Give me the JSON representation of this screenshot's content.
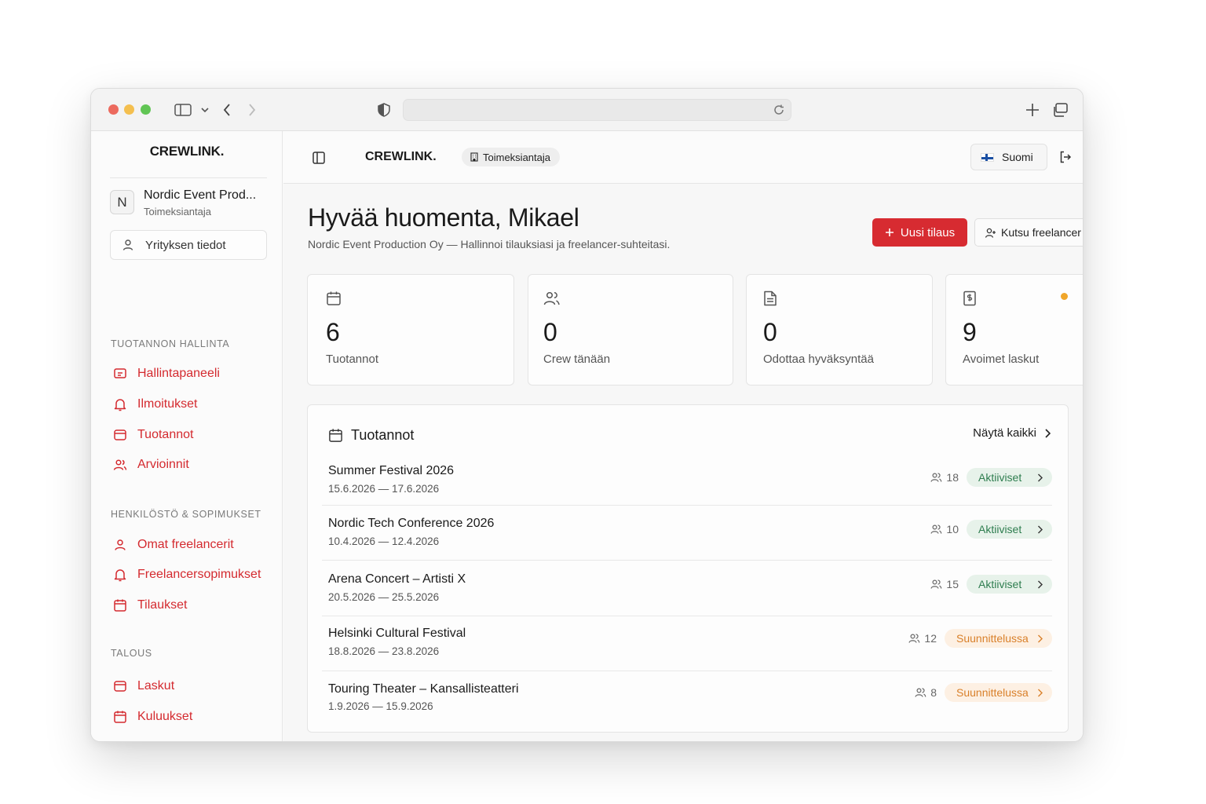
{
  "app": {
    "brand": "CREWLINK."
  },
  "organization": {
    "initial": "N",
    "name": "Nordic Event Prod...",
    "role": "Toimeksiantaja",
    "company_button": "Yrityksen tiedot"
  },
  "sidebar": {
    "sections": [
      {
        "title": "TUOTANNON HALLINTA",
        "items": [
          {
            "label": "Hallintapaneeli",
            "icon": "dashboard-icon"
          },
          {
            "label": "Ilmoitukset",
            "icon": "bell-icon"
          },
          {
            "label": "Tuotannot",
            "icon": "folder-icon"
          },
          {
            "label": "Arvioinnit",
            "icon": "users-icon"
          }
        ]
      },
      {
        "title": "HENKILÖSTÖ & SOPIMUKSET",
        "items": [
          {
            "label": "Omat freelancerit",
            "icon": "user-icon"
          },
          {
            "label": "Freelancersopimukset",
            "icon": "bell-icon"
          },
          {
            "label": "Tilaukset",
            "icon": "calendar-icon"
          }
        ]
      },
      {
        "title": "TALOUS",
        "items": [
          {
            "label": "Laskut",
            "icon": "folder-icon"
          },
          {
            "label": "Kuluukset",
            "icon": "calendar-icon"
          }
        ]
      }
    ]
  },
  "header": {
    "brand": "CREWLINK.",
    "role_badge": "Toimeksiantaja",
    "language": "Suomi"
  },
  "page": {
    "greeting": "Hyvää huomenta, Mikael",
    "subtitle": "Nordic Event Production Oy — Hallinnoi tilauksiasi ja freelancer-suhteitasi.",
    "new_order_button": "Uusi tilaus",
    "invite_button": "Kutsu freelancer"
  },
  "stats": [
    {
      "value": "6",
      "label": "Tuotannot",
      "icon": "calendar-icon"
    },
    {
      "value": "0",
      "label": "Crew tänään",
      "icon": "users-icon"
    },
    {
      "value": "0",
      "label": "Odottaa hyväksyntää",
      "icon": "document-icon"
    },
    {
      "value": "9",
      "label": "Avoimet laskut",
      "icon": "invoice-icon"
    }
  ],
  "productions": {
    "title": "Tuotannot",
    "see_all": "Näytä kaikki",
    "rows": [
      {
        "name": "Summer Festival 2026",
        "dates": "15.6.2026 — 17.6.2026",
        "crew": "18",
        "status": "Aktiiviset"
      },
      {
        "name": "Nordic Tech Conference 2026",
        "dates": "10.4.2026 — 12.4.2026",
        "crew": "10",
        "status": "Aktiiviset"
      },
      {
        "name": "Arena Concert – Artisti X",
        "dates": "20.5.2026 — 25.5.2026",
        "crew": "15",
        "status": "Aktiiviset"
      },
      {
        "name": "Helsinki Cultural Festival",
        "dates": "18.8.2026 — 23.8.2026",
        "crew": "12",
        "status": "Suunnittelussa"
      },
      {
        "name": "Touring Theater – Kansallisteatteri",
        "dates": "1.9.2026 — 15.9.2026",
        "crew": "8",
        "status": "Suunnittelussa"
      }
    ]
  },
  "colors": {
    "accent": "#d72b31",
    "active_bg": "#e7f2ea",
    "active_text": "#2e7d4f",
    "planning_bg": "#fdf0e3",
    "planning_text": "#d9802a"
  }
}
